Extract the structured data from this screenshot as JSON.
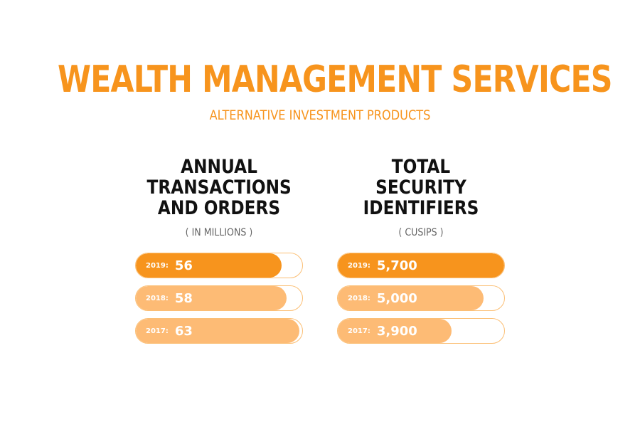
{
  "header": {
    "title": "WEALTH MANAGEMENT SERVICES",
    "subtitle": "ALTERNATIVE INVESTMENT PRODUCTS"
  },
  "colors": {
    "accent": "#f7941d",
    "accent_light": "#fdbb75",
    "text_dark": "#111111",
    "text_muted": "#666666"
  },
  "chart_data": [
    {
      "type": "bar",
      "orientation": "horizontal",
      "title_lines": [
        "ANNUAL",
        "TRANSACTIONS",
        "AND ORDERS"
      ],
      "unit": "( IN MILLIONS )",
      "categories": [
        "2019:",
        "2018:",
        "2017:"
      ],
      "values": [
        56,
        58,
        63
      ],
      "value_labels": [
        "56",
        "58",
        "63"
      ],
      "xlim": [
        0,
        64
      ],
      "grid": false
    },
    {
      "type": "bar",
      "orientation": "horizontal",
      "title_lines": [
        "TOTAL",
        "SECURITY",
        "IDENTIFIERS"
      ],
      "unit": "( CUSIPS )",
      "categories": [
        "2019:",
        "2018:",
        "2017:"
      ],
      "values": [
        5700,
        5000,
        3900
      ],
      "value_labels": [
        "5,700",
        "5,000",
        "3,900"
      ],
      "xlim": [
        0,
        5700
      ],
      "grid": false
    }
  ]
}
